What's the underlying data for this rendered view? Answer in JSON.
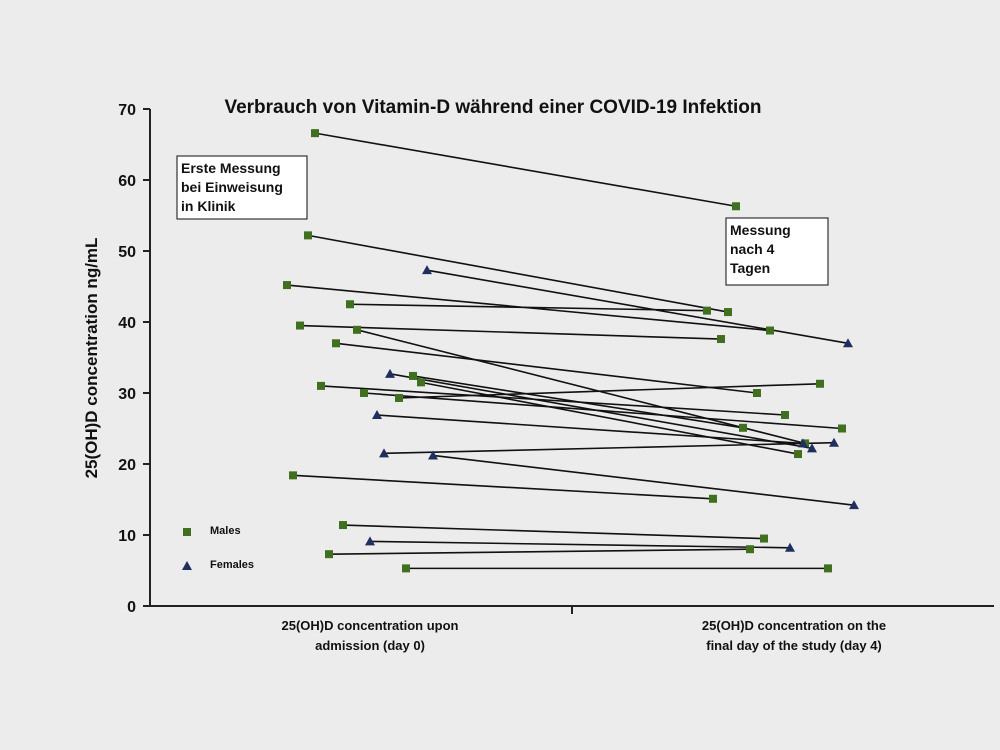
{
  "chart_data": {
    "type": "line",
    "title": "Verbrauch von Vitamin-D während einer COVID-19 Infektion",
    "ylabel": "25(OH)D concentration ng/mL",
    "ylim": [
      0,
      70
    ],
    "yticks": [
      "0",
      "10",
      "20",
      "30",
      "40",
      "50",
      "60",
      "70"
    ],
    "categories": [
      [
        "25(OH)D concentration upon",
        "admission (day 0)"
      ],
      [
        "25(OH)D concentration on the",
        "final day of the study (day 4)"
      ]
    ],
    "annotations": [
      [
        "Erste Messung",
        "bei Einweisung",
        "in Klinik"
      ],
      [
        "Messung",
        "nach 4",
        "Tagen"
      ]
    ],
    "legend": {
      "position": "bottom-left",
      "items": [
        {
          "label": "Males",
          "marker": "square",
          "color": "#3f6f1f"
        },
        {
          "label": "Females",
          "marker": "triangle",
          "color": "#1f2f5f"
        }
      ]
    },
    "series": [
      {
        "group": "Males",
        "values": [
          66.6,
          56.3
        ]
      },
      {
        "group": "Males",
        "values": [
          52.2,
          41.4
        ]
      },
      {
        "group": "Females",
        "values": [
          47.3,
          37.0
        ]
      },
      {
        "group": "Males",
        "values": [
          45.2,
          38.8
        ]
      },
      {
        "group": "Males",
        "values": [
          42.5,
          41.6
        ]
      },
      {
        "group": "Males",
        "values": [
          39.5,
          37.6
        ]
      },
      {
        "group": "Males",
        "values": [
          38.9,
          22.9
        ]
      },
      {
        "group": "Males",
        "values": [
          37.0,
          30.0
        ]
      },
      {
        "group": "Females",
        "values": [
          32.7,
          22.2
        ]
      },
      {
        "group": "Males",
        "values": [
          32.4,
          25.1
        ]
      },
      {
        "group": "Males",
        "values": [
          31.5,
          21.4
        ]
      },
      {
        "group": "Males",
        "values": [
          31.0,
          26.9
        ]
      },
      {
        "group": "Males",
        "values": [
          30.0,
          25.0
        ]
      },
      {
        "group": "Males",
        "values": [
          29.3,
          31.3
        ]
      },
      {
        "group": "Females",
        "values": [
          26.9,
          22.9
        ]
      },
      {
        "group": "Females",
        "values": [
          21.5,
          23.0
        ]
      },
      {
        "group": "Females",
        "values": [
          21.2,
          14.2
        ]
      },
      {
        "group": "Males",
        "values": [
          18.4,
          15.1
        ]
      },
      {
        "group": "Males",
        "values": [
          11.4,
          9.5
        ]
      },
      {
        "group": "Females",
        "values": [
          9.1,
          8.2
        ]
      },
      {
        "group": "Males",
        "values": [
          7.3,
          8.0
        ]
      },
      {
        "group": "Males",
        "values": [
          5.3,
          5.3
        ]
      }
    ]
  }
}
